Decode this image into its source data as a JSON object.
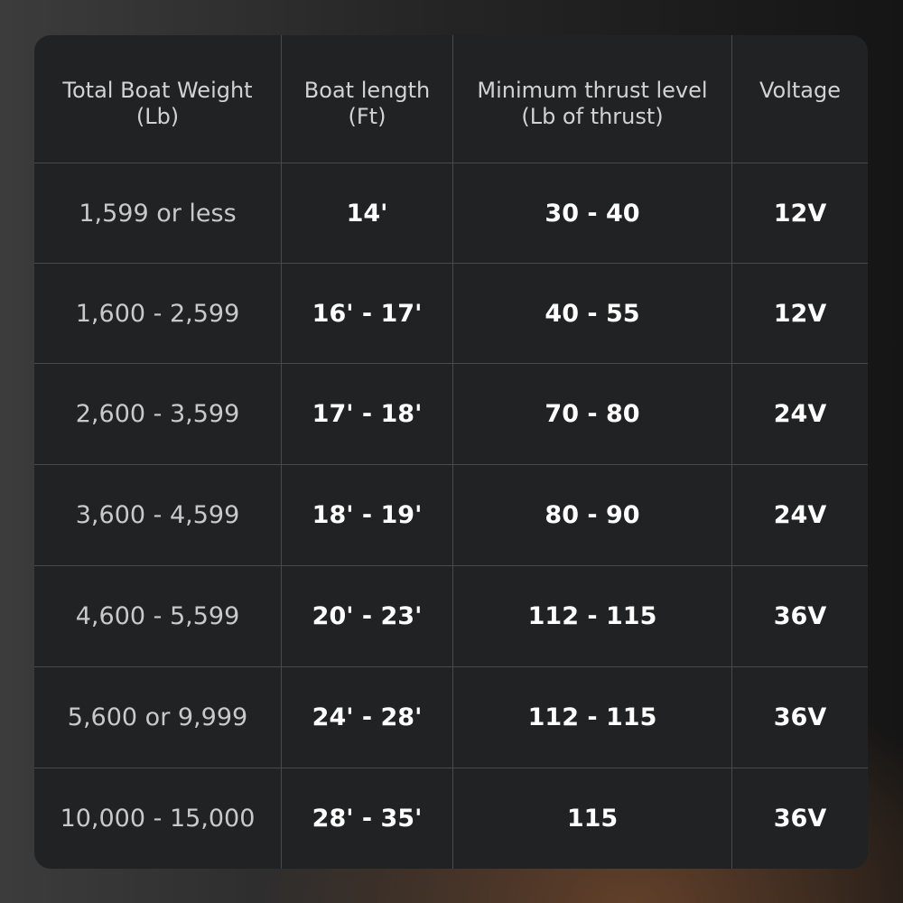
{
  "table": {
    "header": [
      [
        "Total Boat Weight",
        "(Lb)"
      ],
      [
        "Boat length",
        "(Ft)"
      ],
      [
        "Minimum thrust level",
        "(Lb of thrust)"
      ],
      [
        "Voltage"
      ]
    ],
    "rows": [
      [
        "1,599 or less",
        "14'",
        "30 - 40",
        "12V"
      ],
      [
        "1,600 - 2,599",
        "16' - 17'",
        "40 - 55",
        "12V"
      ],
      [
        "2,600 - 3,599",
        "17' - 18'",
        "70 - 80",
        "24V"
      ],
      [
        "3,600 - 4,599",
        "18' - 19'",
        "80 - 90",
        "24V"
      ],
      [
        "4,600 - 5,599",
        "20' - 23'",
        "112 - 115",
        "36V"
      ],
      [
        "5,600 or 9,999",
        "24' - 28'",
        "112 - 115",
        "36V"
      ],
      [
        "10,000 - 15,000",
        "28' - 35'",
        "115",
        "36V"
      ]
    ]
  }
}
